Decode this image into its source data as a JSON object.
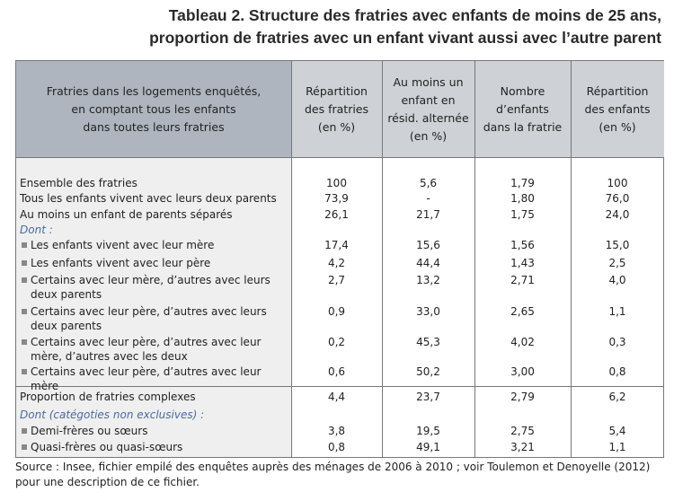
{
  "title": {
    "line1": "Tableau 2. Structure des fratries avec enfants de moins de 25 ans,",
    "line2": "proportion de fratries avec un enfant vivant aussi avec l’autre parent"
  },
  "headers": [
    "Fratries dans les logements enquêtés,\nen comptant tous les enfants\ndans toutes leurs fratries",
    "Répartition\ndes fratries\n(en %)",
    "Au moins un\nenfant en\nrésid. alternée\n(en %)",
    "Nombre\nd’enfants\ndans la fratrie",
    "Répartition\ndes enfants\n(en %)"
  ],
  "rows": [
    {
      "label": "Ensemble des fratries",
      "style": "n",
      "values": [
        "100",
        "5,6",
        "1,79",
        "100"
      ]
    },
    {
      "label": "Tous les enfants vivent avec leurs deux parents",
      "style": "n",
      "values": [
        "73,9",
        "-",
        "1,80",
        "76,0"
      ]
    },
    {
      "label": "Au moins un enfant de parents séparés",
      "style": "n",
      "values": [
        "26,1",
        "21,7",
        "1,75",
        "24,0"
      ]
    },
    {
      "label": "Dont :",
      "style": "i",
      "values": []
    },
    {
      "label": "Les enfants vivent avec leur mère",
      "style": "b",
      "values": [
        "17,4",
        "15,6",
        "1,56",
        "15,0"
      ]
    },
    {
      "label": "Les enfants vivent avec leur père",
      "style": "b",
      "values": [
        "4,2",
        "44,4",
        "1,43",
        "2,5"
      ]
    },
    {
      "label": "Certains avec leur mère, d’autres avec leurs deux parents",
      "style": "b",
      "values": [
        "2,7",
        "13,2",
        "2,71",
        "4,0"
      ]
    },
    {
      "label": "Certains avec leur père, d’autres avec leurs deux parents",
      "style": "b",
      "values": [
        "0,9",
        "33,0",
        "2,65",
        "1,1"
      ]
    },
    {
      "label": "Certains avec leur père, d’autres avec leur mère, d’autres avec les deux",
      "style": "b",
      "values": [
        "0,2",
        "45,3",
        "4,02",
        "0,3"
      ]
    },
    {
      "label": "Certains avec leur père, d’autres avec leur mère",
      "style": "b",
      "values": [
        "0,6",
        "50,2",
        "3,00",
        "0,8"
      ]
    },
    {
      "label": "Proportion de fratries complexes",
      "style": "n",
      "values": [
        "4,4",
        "23,7",
        "2,79",
        "6,2"
      ]
    },
    {
      "label": "Dont (catégoties non exclusives) :",
      "style": "i",
      "values": []
    },
    {
      "label": "Demi-frères ou sœurs",
      "style": "b",
      "values": [
        "3,8",
        "19,5",
        "2,75",
        "5,4"
      ]
    },
    {
      "label": "Quasi-frères ou quasi-sœurs",
      "style": "b",
      "values": [
        "0,8",
        "49,1",
        "3,21",
        "1,1"
      ]
    }
  ],
  "source": "Source : Insee, fichier empilé des enquêtes auprès des ménages de 2006 à 2010 ; voir Toulemon et Denoyelle (2012) pour une description de ce fichier."
}
